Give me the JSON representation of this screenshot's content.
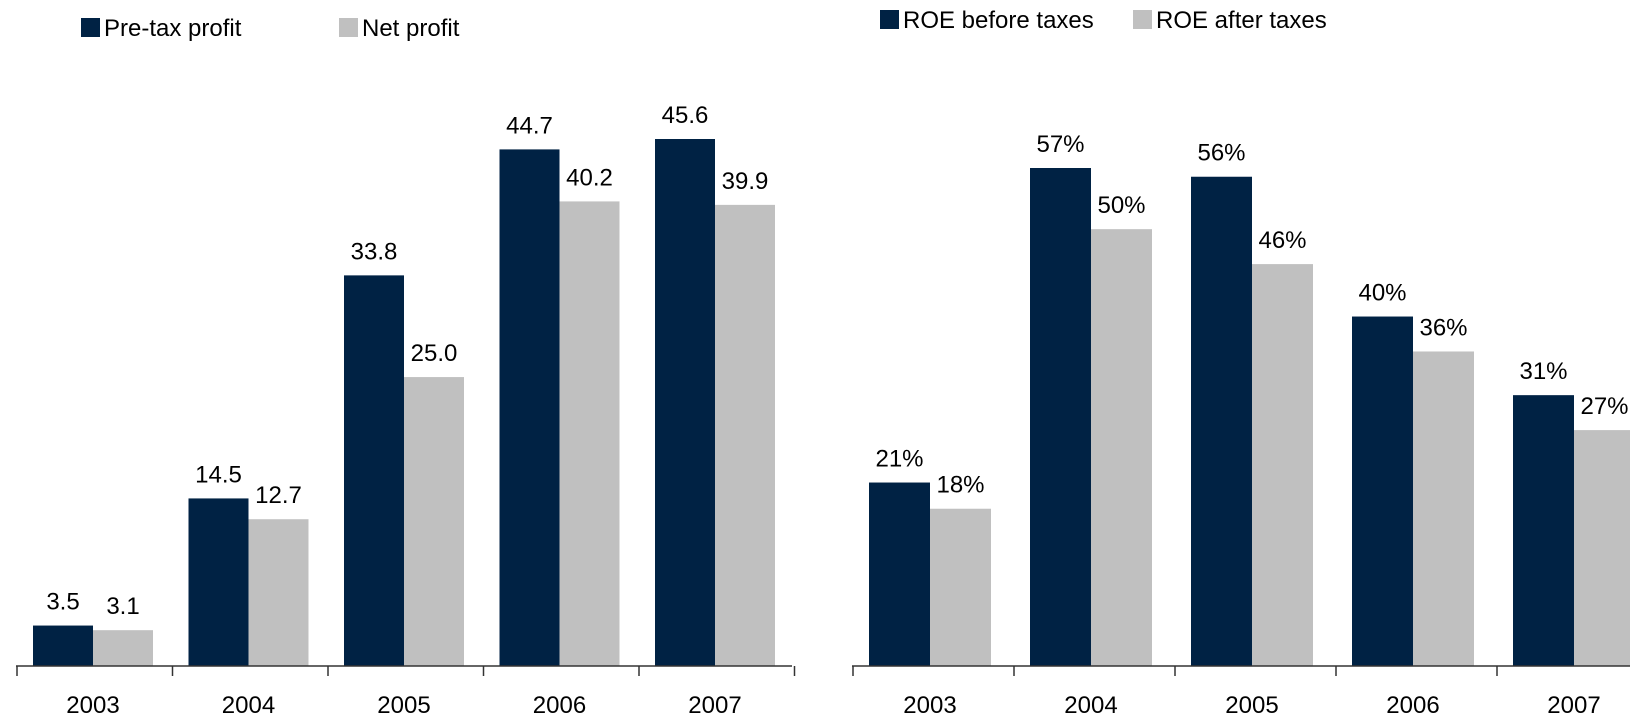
{
  "colors": {
    "dark": "#002244",
    "light": "#c0c0c0",
    "axis": "#333333"
  },
  "chart_data": [
    {
      "type": "bar",
      "title": "",
      "xlabel": "",
      "ylabel": "",
      "ylim": [
        0,
        55
      ],
      "grid": false,
      "legend": "top-left",
      "categories": [
        "2003",
        "2004",
        "2005",
        "2006",
        "2007"
      ],
      "series": [
        {
          "name": "Pre-tax profit",
          "values": [
            3.5,
            14.5,
            33.8,
            44.7,
            45.6
          ],
          "labels": [
            "3.5",
            "14.5",
            "33.8",
            "44.7",
            "45.6"
          ]
        },
        {
          "name": "Net profit",
          "values": [
            3.1,
            12.7,
            25.0,
            40.2,
            39.9
          ],
          "labels": [
            "3.1",
            "12.7",
            "25.0",
            "40.2",
            "39.9"
          ]
        }
      ]
    },
    {
      "type": "bar",
      "title": "",
      "xlabel": "",
      "ylabel": "",
      "ylim": [
        0,
        70
      ],
      "grid": false,
      "legend": "top-left",
      "categories": [
        "2003",
        "2004",
        "2005",
        "2006",
        "2007"
      ],
      "series": [
        {
          "name": "ROE before taxes",
          "values": [
            21,
            57,
            56,
            40,
            31
          ],
          "labels": [
            "21%",
            "57%",
            "56%",
            "40%",
            "31%"
          ]
        },
        {
          "name": "ROE after taxes",
          "values": [
            18,
            50,
            46,
            36,
            27
          ],
          "labels": [
            "18%",
            "50%",
            "46%",
            "36%",
            "27%"
          ]
        }
      ]
    }
  ]
}
